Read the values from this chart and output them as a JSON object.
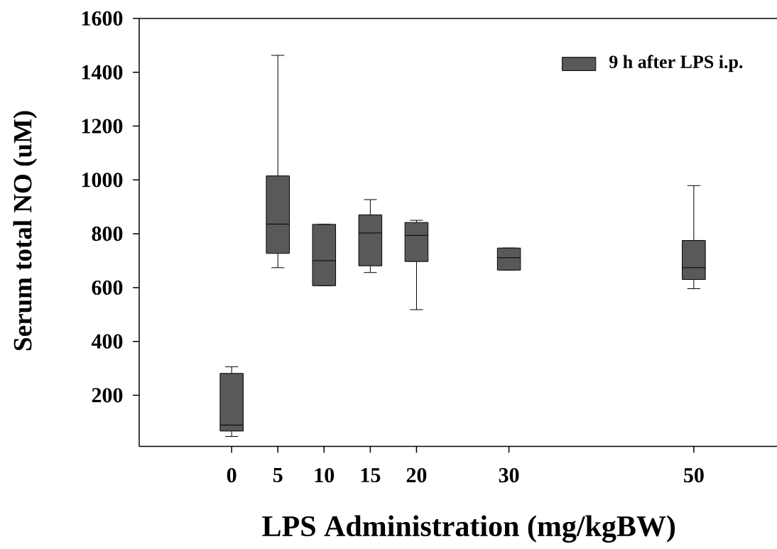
{
  "chart_data": {
    "type": "box",
    "xlabel": "LPS Administration (mg/kgBW)",
    "ylabel": "Serum total NO (uM)",
    "x": [
      0,
      5,
      10,
      15,
      20,
      30,
      50
    ],
    "xlim": [
      -10,
      59
    ],
    "xticks": [
      0,
      5,
      10,
      15,
      20,
      30,
      50
    ],
    "ylim": [
      10,
      1600
    ],
    "yticks": [
      200,
      400,
      600,
      800,
      1000,
      1200,
      1400,
      1600
    ],
    "legend": "top right",
    "series": [
      {
        "name": "9 h after LPS i.p.",
        "color": "#595959",
        "boxes": [
          {
            "low": 47,
            "q1": 67,
            "median": 89,
            "q3": 281,
            "high": 306
          },
          {
            "low": 674,
            "q1": 727,
            "median": 836,
            "q3": 1015,
            "high": 1463
          },
          {
            "low": 607,
            "q1": 607,
            "median": 700,
            "q3": 835,
            "high": 835
          },
          {
            "low": 656,
            "q1": 681,
            "median": 803,
            "q3": 870,
            "high": 927
          },
          {
            "low": 518,
            "q1": 697,
            "median": 794,
            "q3": 842,
            "high": 850
          },
          {
            "low": 665,
            "q1": 665,
            "median": 711,
            "q3": 747,
            "high": 747
          },
          {
            "low": 596,
            "q1": 630,
            "median": 674,
            "q3": 775,
            "high": 979
          }
        ]
      }
    ]
  }
}
